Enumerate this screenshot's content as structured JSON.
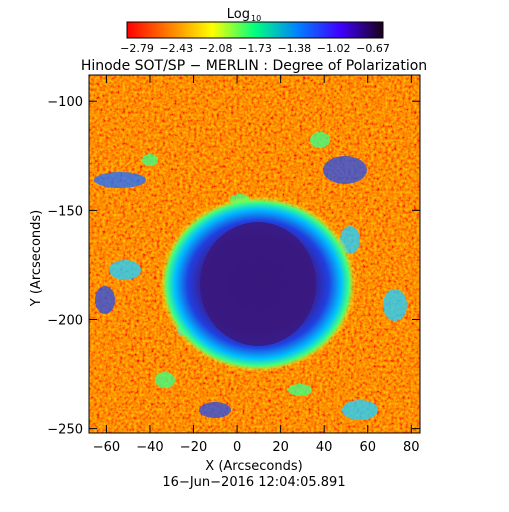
{
  "colorbar": {
    "label": "Log",
    "label_sub": "10",
    "tick_labels": [
      "−2.79",
      "−2.43",
      "−2.08",
      "−1.73",
      "−1.38",
      "−1.02",
      "−0.67"
    ],
    "colors": [
      "#ff0000",
      "#ff8000",
      "#ffff00",
      "#00ff80",
      "#0080ff",
      "#4000ff",
      "#1a001a"
    ]
  },
  "chart_data": {
    "type": "heatmap",
    "title": "Hinode SOT/SP − MERLIN : Degree of Polarization",
    "xlabel": "X (Arcseconds)",
    "ylabel": "Y (Arcseconds)",
    "xlim": [
      -68,
      84
    ],
    "ylim": [
      -252,
      -88
    ],
    "x_ticks": [
      -60,
      -40,
      -20,
      0,
      20,
      40,
      60,
      80
    ],
    "y_ticks": [
      -100,
      -150,
      -200,
      -250
    ],
    "x_tick_labels": [
      "−60",
      "−40",
      "−20",
      "0",
      "20",
      "40",
      "60",
      "80"
    ],
    "y_tick_labels": [
      "−100",
      "−150",
      "−200",
      "−250"
    ],
    "colorscale_range_log10": [
      -2.79,
      -0.67
    ],
    "colors": {
      "background": "#ff4000",
      "penumbra": "#00c0ff",
      "umbra": "#3a1a7a"
    }
  },
  "footer": {
    "timestamp": "16−Jun−2016 12:04:05.891"
  }
}
